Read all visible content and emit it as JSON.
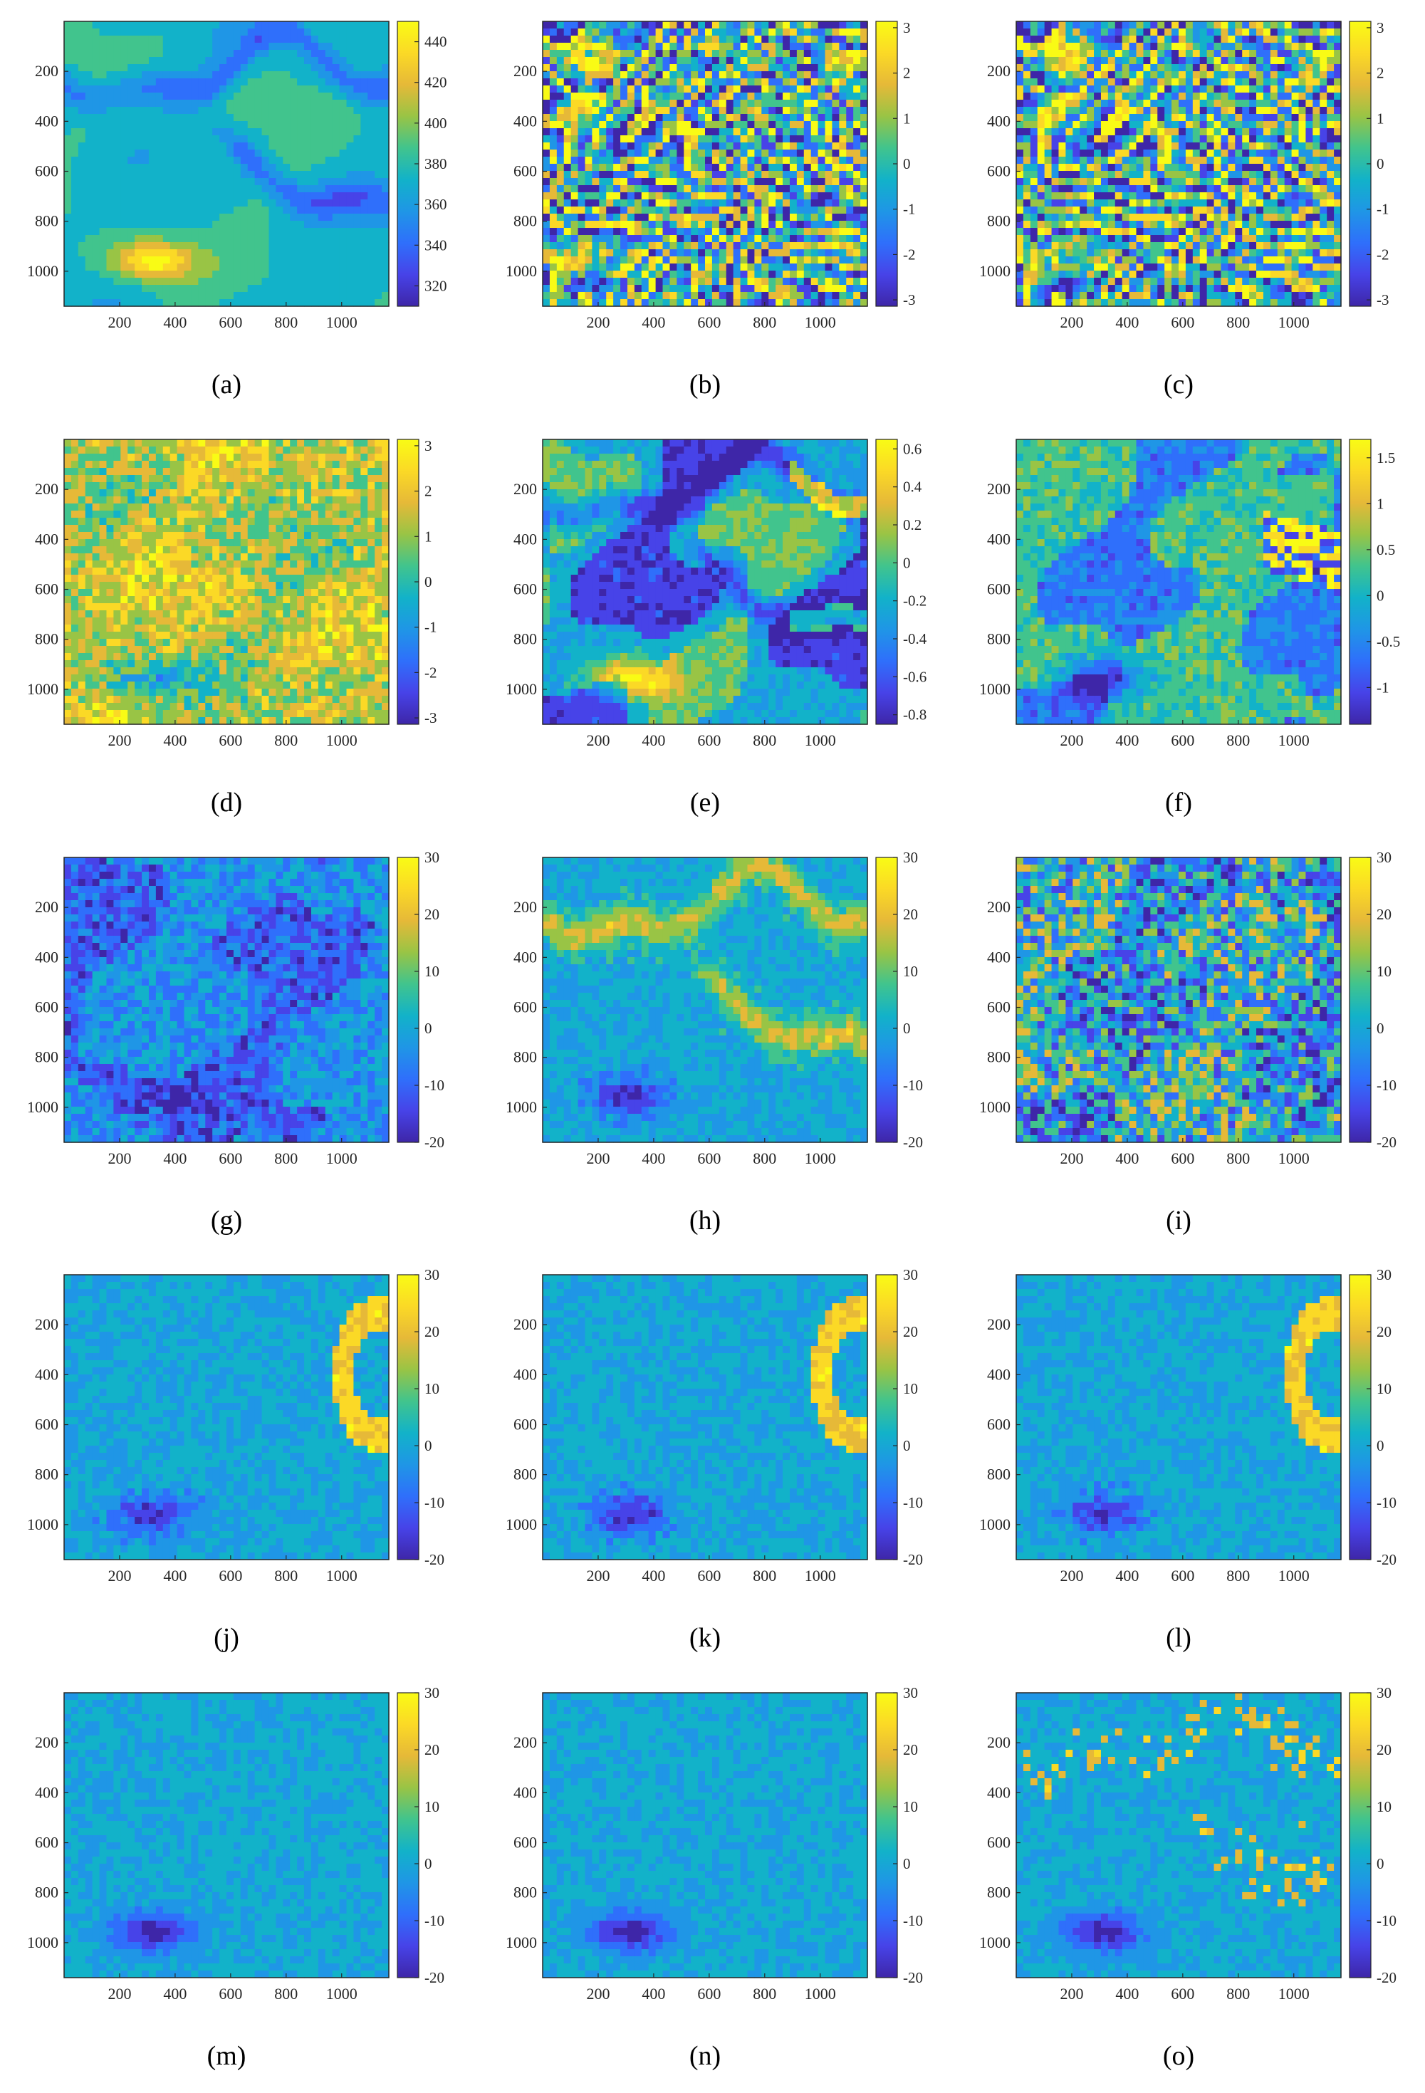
{
  "figure": {
    "colormap": [
      "#3e26a8",
      "#4743e8",
      "#2f6ffb",
      "#1f96e6",
      "#12b2c9",
      "#41c48d",
      "#99c445",
      "#e6b938",
      "#fbd926",
      "#f9fb15"
    ],
    "x_ticks": [
      "200",
      "400",
      "600",
      "800",
      "1000"
    ],
    "y_ticks": [
      "200",
      "400",
      "600",
      "800",
      "1000"
    ],
    "x_range": [
      0,
      1170
    ],
    "y_range": [
      0,
      1140
    ]
  },
  "chart_data": [
    {
      "type": "heatmap",
      "label": "a",
      "panel_title": "(a)",
      "pattern": "smooth",
      "cmin": 310,
      "cmax": 450,
      "colorbar_ticks": [
        "320",
        "340",
        "360",
        "380",
        "400",
        "420",
        "440"
      ],
      "colorbar_values": [
        320,
        340,
        360,
        380,
        400,
        420,
        440
      ]
    },
    {
      "type": "heatmap",
      "label": "b",
      "panel_title": "(b)",
      "pattern": "wrapped",
      "cmin": -3.14,
      "cmax": 3.14,
      "colorbar_ticks": [
        "-3",
        "-2",
        "-1",
        "0",
        "1",
        "2",
        "3"
      ],
      "colorbar_values": [
        -3,
        -2,
        -1,
        0,
        1,
        2,
        3
      ]
    },
    {
      "type": "heatmap",
      "label": "c",
      "panel_title": "(c)",
      "pattern": "wrapped",
      "cmin": -3.14,
      "cmax": 3.14,
      "colorbar_ticks": [
        "-3",
        "-2",
        "-1",
        "0",
        "1",
        "2",
        "3"
      ],
      "colorbar_values": [
        -3,
        -2,
        -1,
        0,
        1,
        2,
        3
      ]
    },
    {
      "type": "heatmap",
      "label": "d",
      "panel_title": "(d)",
      "pattern": "smoothNoisy",
      "cmin": -3.14,
      "cmax": 3.14,
      "colorbar_ticks": [
        "-3",
        "-2",
        "-1",
        "0",
        "1",
        "2",
        "3"
      ],
      "colorbar_values": [
        -3,
        -2,
        -1,
        0,
        1,
        2,
        3
      ]
    },
    {
      "type": "heatmap",
      "label": "e",
      "panel_title": "(e)",
      "pattern": "banded",
      "cmin": -0.85,
      "cmax": 0.65,
      "colorbar_ticks": [
        "-0.8",
        "-0.6",
        "-0.4",
        "-0.2",
        "0",
        "0.2",
        "0.4",
        "0.6"
      ],
      "colorbar_values": [
        -0.8,
        -0.6,
        -0.4,
        -0.2,
        0,
        0.2,
        0.4,
        0.6
      ]
    },
    {
      "type": "heatmap",
      "label": "f",
      "panel_title": "(f)",
      "pattern": "patchy",
      "cmin": -1.4,
      "cmax": 1.7,
      "colorbar_ticks": [
        "-1",
        "-0.5",
        "0",
        "0.5",
        "1",
        "1.5"
      ],
      "colorbar_values": [
        -1,
        -0.5,
        0,
        0.5,
        1,
        1.5
      ]
    },
    {
      "type": "heatmap",
      "label": "g",
      "panel_title": "(g)",
      "pattern": "errorDark",
      "cmin": -20,
      "cmax": 30,
      "colorbar_ticks": [
        "-20",
        "-10",
        "0",
        "10",
        "20",
        "30"
      ],
      "colorbar_values": [
        -20,
        -10,
        0,
        10,
        20,
        30
      ]
    },
    {
      "type": "heatmap",
      "label": "h",
      "panel_title": "(h)",
      "pattern": "errorBand",
      "cmin": -20,
      "cmax": 30,
      "colorbar_ticks": [
        "-20",
        "-10",
        "0",
        "10",
        "20",
        "30"
      ],
      "colorbar_values": [
        -20,
        -10,
        0,
        10,
        20,
        30
      ]
    },
    {
      "type": "heatmap",
      "label": "i",
      "panel_title": "(i)",
      "pattern": "errorNoisy",
      "cmin": -20,
      "cmax": 30,
      "colorbar_ticks": [
        "-20",
        "-10",
        "0",
        "10",
        "20",
        "30"
      ],
      "colorbar_values": [
        -20,
        -10,
        0,
        10,
        20,
        30
      ]
    },
    {
      "type": "heatmap",
      "label": "j",
      "panel_title": "(j)",
      "pattern": "errorArc",
      "cmin": -20,
      "cmax": 30,
      "colorbar_ticks": [
        "-20",
        "-10",
        "0",
        "10",
        "20",
        "30"
      ],
      "colorbar_values": [
        -20,
        -10,
        0,
        10,
        20,
        30
      ]
    },
    {
      "type": "heatmap",
      "label": "k",
      "panel_title": "(k)",
      "pattern": "errorArc",
      "cmin": -20,
      "cmax": 30,
      "colorbar_ticks": [
        "-20",
        "-10",
        "0",
        "10",
        "20",
        "30"
      ],
      "colorbar_values": [
        -20,
        -10,
        0,
        10,
        20,
        30
      ]
    },
    {
      "type": "heatmap",
      "label": "l",
      "panel_title": "(l)",
      "pattern": "errorArc",
      "cmin": -20,
      "cmax": 30,
      "colorbar_ticks": [
        "-20",
        "-10",
        "0",
        "10",
        "20",
        "30"
      ],
      "colorbar_values": [
        -20,
        -10,
        0,
        10,
        20,
        30
      ]
    },
    {
      "type": "heatmap",
      "label": "m",
      "panel_title": "(m)",
      "pattern": "errorFlat",
      "cmin": -20,
      "cmax": 30,
      "colorbar_ticks": [
        "-20",
        "-10",
        "0",
        "10",
        "20",
        "30"
      ],
      "colorbar_values": [
        -20,
        -10,
        0,
        10,
        20,
        30
      ]
    },
    {
      "type": "heatmap",
      "label": "n",
      "panel_title": "(n)",
      "pattern": "errorFlat",
      "cmin": -20,
      "cmax": 30,
      "colorbar_ticks": [
        "-20",
        "-10",
        "0",
        "10",
        "20",
        "30"
      ],
      "colorbar_values": [
        -20,
        -10,
        0,
        10,
        20,
        30
      ]
    },
    {
      "type": "heatmap",
      "label": "o",
      "panel_title": "(o)",
      "pattern": "errorFlatDots",
      "cmin": -20,
      "cmax": 30,
      "colorbar_ticks": [
        "-20",
        "-10",
        "0",
        "10",
        "20",
        "30"
      ],
      "colorbar_values": [
        -20,
        -10,
        0,
        10,
        20,
        30
      ]
    }
  ]
}
